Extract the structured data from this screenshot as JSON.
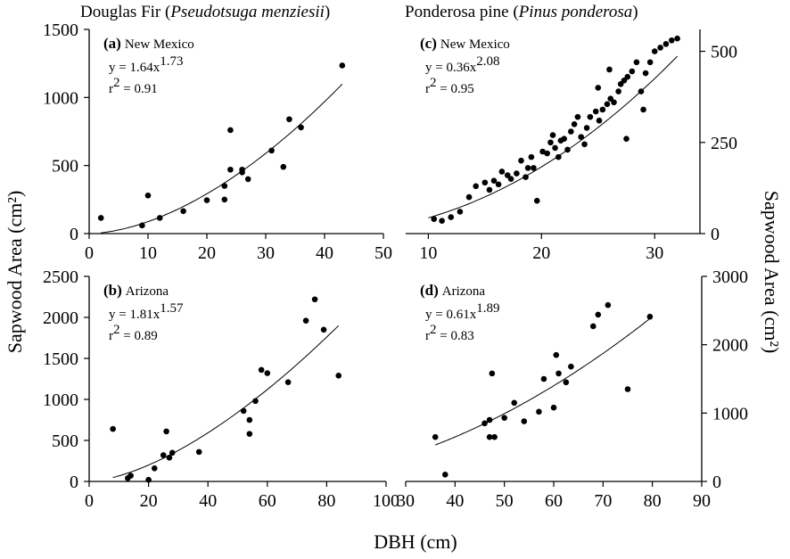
{
  "figure": {
    "xlabel": "DBH (cm)",
    "ylabel_left": "Sapwood Area (cm²)",
    "ylabel_right": "Sapwood Area (cm²)",
    "columns": [
      {
        "name": "Douglas Fir",
        "latin": "Pseudotsuga menziesii"
      },
      {
        "name": "Ponderosa pine",
        "latin": "Pinus ponderosa"
      }
    ]
  },
  "chart_data": [
    {
      "id": "a",
      "type": "scatter",
      "letter": "(a)",
      "region": "New Mexico",
      "equation": {
        "coef": "y = 1.64x",
        "exp": "1.73"
      },
      "r2": {
        "label": "r",
        "exp": "2",
        "value": " = 0.91"
      },
      "fit": {
        "a": 1.64,
        "b": 1.73,
        "x0": 2,
        "x1": 43
      },
      "xlim": [
        0,
        50
      ],
      "ylim": [
        0,
        1500
      ],
      "xticks": [
        0,
        10,
        20,
        30,
        40,
        50
      ],
      "yticks": [
        0,
        500,
        1000,
        1500
      ],
      "y_axis_side": "left",
      "points": [
        [
          2,
          115
        ],
        [
          9,
          60
        ],
        [
          10,
          280
        ],
        [
          12,
          115
        ],
        [
          16,
          165
        ],
        [
          20,
          245
        ],
        [
          23,
          250
        ],
        [
          23,
          350
        ],
        [
          24,
          470
        ],
        [
          24,
          760
        ],
        [
          26,
          470
        ],
        [
          26,
          450
        ],
        [
          27,
          400
        ],
        [
          31,
          610
        ],
        [
          33,
          490
        ],
        [
          34,
          840
        ],
        [
          36,
          780
        ],
        [
          43,
          1235
        ]
      ]
    },
    {
      "id": "c",
      "type": "scatter",
      "letter": "(c)",
      "region": "New Mexico",
      "equation": {
        "coef": "y = 0.36x",
        "exp": "2.08"
      },
      "r2": {
        "label": "r",
        "exp": "2",
        "value": " = 0.95"
      },
      "fit": {
        "a": 0.36,
        "b": 2.08,
        "x0": 10,
        "x1": 32
      },
      "xlim": [
        8,
        34
      ],
      "ylim": [
        0,
        560
      ],
      "xticks": [
        10,
        20,
        30
      ],
      "yticks": [
        0,
        250,
        500
      ],
      "y_axis_side": "right",
      "points": [
        [
          10.5,
          40
        ],
        [
          11.2,
          35
        ],
        [
          12,
          45
        ],
        [
          12.8,
          60
        ],
        [
          13.6,
          100
        ],
        [
          14.2,
          130
        ],
        [
          15,
          140
        ],
        [
          15.4,
          120
        ],
        [
          15.8,
          145
        ],
        [
          16.2,
          135
        ],
        [
          16.5,
          170
        ],
        [
          17,
          160
        ],
        [
          17.3,
          150
        ],
        [
          17.8,
          165
        ],
        [
          18.2,
          200
        ],
        [
          18.6,
          155
        ],
        [
          18.8,
          180
        ],
        [
          19.1,
          210
        ],
        [
          19.3,
          180
        ],
        [
          19.6,
          90
        ],
        [
          20.1,
          225
        ],
        [
          20.5,
          220
        ],
        [
          20.8,
          250
        ],
        [
          21.0,
          270
        ],
        [
          21.2,
          235
        ],
        [
          21.5,
          210
        ],
        [
          21.7,
          255
        ],
        [
          22,
          260
        ],
        [
          22.3,
          230
        ],
        [
          22.6,
          280
        ],
        [
          22.9,
          300
        ],
        [
          23.2,
          320
        ],
        [
          23.5,
          265
        ],
        [
          23.8,
          245
        ],
        [
          24,
          290
        ],
        [
          24.3,
          320
        ],
        [
          24.8,
          335
        ],
        [
          25.1,
          310
        ],
        [
          25.4,
          340
        ],
        [
          25.8,
          355
        ],
        [
          26.1,
          370
        ],
        [
          26.4,
          360
        ],
        [
          26.8,
          390
        ],
        [
          27,
          410
        ],
        [
          27.3,
          420
        ],
        [
          27.6,
          430
        ],
        [
          28,
          445
        ],
        [
          28.4,
          470
        ],
        [
          28.8,
          390
        ],
        [
          29.2,
          440
        ],
        [
          29.6,
          470
        ],
        [
          30,
          500
        ],
        [
          30.5,
          510
        ],
        [
          31,
          520
        ],
        [
          31.5,
          530
        ],
        [
          32,
          535
        ],
        [
          25,
          400
        ],
        [
          26,
          450
        ],
        [
          27.5,
          260
        ],
        [
          29,
          340
        ]
      ]
    },
    {
      "id": "b",
      "type": "scatter",
      "letter": "(b)",
      "region": "Arizona",
      "equation": {
        "coef": "y = 1.81x",
        "exp": "1.57"
      },
      "r2": {
        "label": "r",
        "exp": "2",
        "value": " = 0.89"
      },
      "fit": {
        "a": 1.81,
        "b": 1.57,
        "x0": 8,
        "x1": 84
      },
      "xlim": [
        0,
        100
      ],
      "ylim": [
        0,
        2500
      ],
      "xticks": [
        0,
        20,
        40,
        60,
        80,
        100
      ],
      "yticks": [
        0,
        500,
        1000,
        1500,
        2000,
        2500
      ],
      "y_axis_side": "left",
      "points": [
        [
          8,
          640
        ],
        [
          13,
          40
        ],
        [
          14,
          70
        ],
        [
          20,
          20
        ],
        [
          22,
          160
        ],
        [
          25,
          320
        ],
        [
          26,
          610
        ],
        [
          27,
          290
        ],
        [
          28,
          350
        ],
        [
          37,
          360
        ],
        [
          52,
          860
        ],
        [
          54,
          750
        ],
        [
          54,
          580
        ],
        [
          56,
          980
        ],
        [
          58,
          1360
        ],
        [
          60,
          1320
        ],
        [
          67,
          1210
        ],
        [
          73,
          1960
        ],
        [
          76,
          2220
        ],
        [
          79,
          1850
        ],
        [
          84,
          1290
        ]
      ]
    },
    {
      "id": "d",
      "type": "scatter",
      "letter": "(d)",
      "region": "Arizona",
      "equation": {
        "coef": "y = 0.61x",
        "exp": "1.89"
      },
      "r2": {
        "label": "r",
        "exp": "2",
        "value": " = 0.83"
      },
      "fit": {
        "a": 0.61,
        "b": 1.89,
        "x0": 36,
        "x1": 80
      },
      "xlim": [
        30,
        90
      ],
      "ylim": [
        0,
        3000
      ],
      "xticks": [
        30,
        40,
        50,
        60,
        70,
        80,
        90
      ],
      "yticks": [
        0,
        1000,
        2000,
        3000
      ],
      "y_axis_side": "right",
      "points": [
        [
          36,
          650
        ],
        [
          38,
          100
        ],
        [
          46,
          850
        ],
        [
          47,
          650
        ],
        [
          47,
          900
        ],
        [
          47.5,
          1580
        ],
        [
          48,
          650
        ],
        [
          50,
          930
        ],
        [
          52,
          1150
        ],
        [
          54,
          880
        ],
        [
          57,
          1020
        ],
        [
          58,
          1500
        ],
        [
          60,
          1080
        ],
        [
          60.5,
          1850
        ],
        [
          61,
          1580
        ],
        [
          62.5,
          1450
        ],
        [
          63.5,
          1680
        ],
        [
          68,
          2270
        ],
        [
          69,
          2440
        ],
        [
          71,
          2580
        ],
        [
          75,
          1350
        ],
        [
          79.5,
          2410
        ]
      ]
    }
  ]
}
